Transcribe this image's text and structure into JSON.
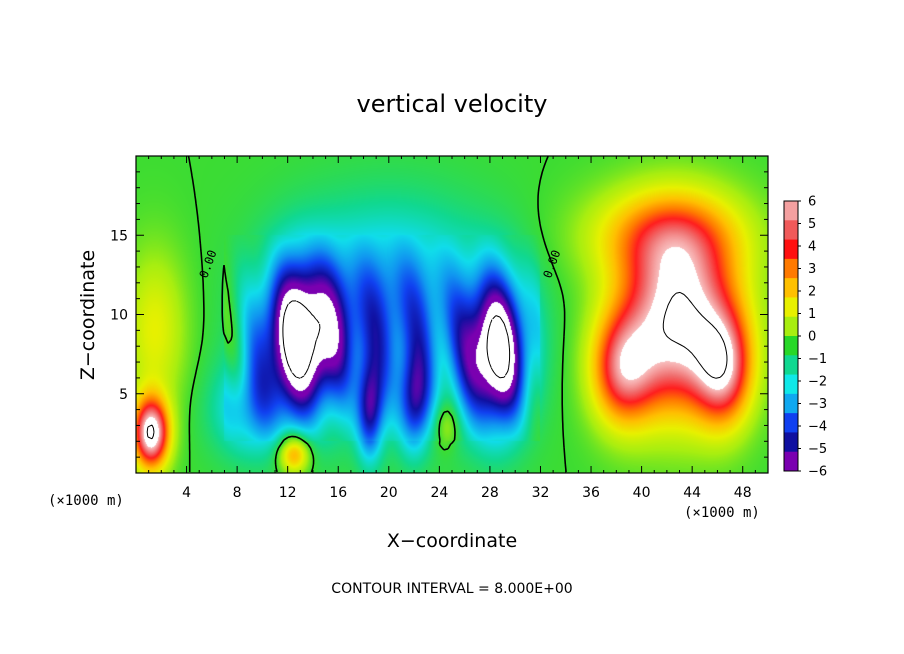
{
  "chart_data": {
    "type": "heatmap",
    "title": "vertical velocity",
    "xlabel": "X−coordinate",
    "ylabel": "Z−coordinate",
    "x_unit_left": "(×1000 m)",
    "x_unit_right": "(×1000 m)",
    "xlim": [
      0,
      50
    ],
    "ylim": [
      0,
      20
    ],
    "x_ticks": [
      4,
      8,
      12,
      16,
      20,
      24,
      28,
      32,
      36,
      40,
      44,
      48
    ],
    "y_ticks": [
      5,
      10,
      15
    ],
    "colorbar": {
      "ticks": [
        "6",
        "5",
        "4",
        "3",
        "2",
        "1",
        "0",
        "−1",
        "−2",
        "−3",
        "−4",
        "−5",
        "−6"
      ],
      "colors": [
        "#f4a0a0",
        "#f05a5a",
        "#ff1010",
        "#ff7a00",
        "#ffc000",
        "#e8f000",
        "#a8ee10",
        "#28d828",
        "#10d890",
        "#10e8e8",
        "#10a8f0",
        "#1040f0",
        "#1010a0",
        "#7a00b0"
      ]
    },
    "contour_interval_text": "CONTOUR INTERVAL = 8.000E+00",
    "contour_labels": [
      "0.00",
      "0.00"
    ],
    "features": [
      {
        "kind": "updraft_core",
        "x": 43,
        "z": 9.5,
        "amp": 8.0,
        "sx": 4.5,
        "sz": 5.5
      },
      {
        "kind": "updraft_core",
        "x": 38.5,
        "z": 6.5,
        "amp": 5.0,
        "sx": 2.5,
        "sz": 3.5
      },
      {
        "kind": "updraft_core",
        "x": 46.5,
        "z": 6.5,
        "amp": 5.0,
        "sx": 2.2,
        "sz": 3.5
      },
      {
        "kind": "updraft_top",
        "x": 42,
        "z": 15,
        "amp": 3.5,
        "sx": 6,
        "sz": 3
      },
      {
        "kind": "updraft_core",
        "x": 1.2,
        "z": 2.5,
        "amp": 8.0,
        "sx": 1.4,
        "sz": 2.2
      },
      {
        "kind": "updraft_weak",
        "x": 1.5,
        "z": 9,
        "amp": 2.0,
        "sx": 2.5,
        "sz": 5
      },
      {
        "kind": "downdraft_core",
        "x": 13,
        "z": 8.5,
        "amp": -8.0,
        "sx": 3,
        "sz": 4.5
      },
      {
        "kind": "downdraft_core",
        "x": 28.5,
        "z": 7.5,
        "amp": -8.0,
        "sx": 2.5,
        "sz": 4.5
      },
      {
        "kind": "downdraft_weak",
        "x": 20,
        "z": 10,
        "amp": -4.0,
        "sx": 8,
        "sz": 6
      },
      {
        "kind": "downdraft_strip",
        "x": 18.5,
        "z": 4,
        "amp": -4.5,
        "sx": 1,
        "sz": 3
      },
      {
        "kind": "downdraft_strip",
        "x": 22,
        "z": 4.5,
        "amp": -4.0,
        "sx": 1.2,
        "sz": 3
      },
      {
        "kind": "downdraft_weak",
        "x": 9,
        "z": 4,
        "amp": -2.5,
        "sx": 3,
        "sz": 3
      },
      {
        "kind": "updraft_spot",
        "x": 12.5,
        "z": 1.2,
        "amp": 4.0,
        "sx": 1.2,
        "sz": 1.2
      },
      {
        "kind": "updraft_spot",
        "x": 24.5,
        "z": 3,
        "amp": 1.5,
        "sx": 1,
        "sz": 1.5
      }
    ]
  }
}
